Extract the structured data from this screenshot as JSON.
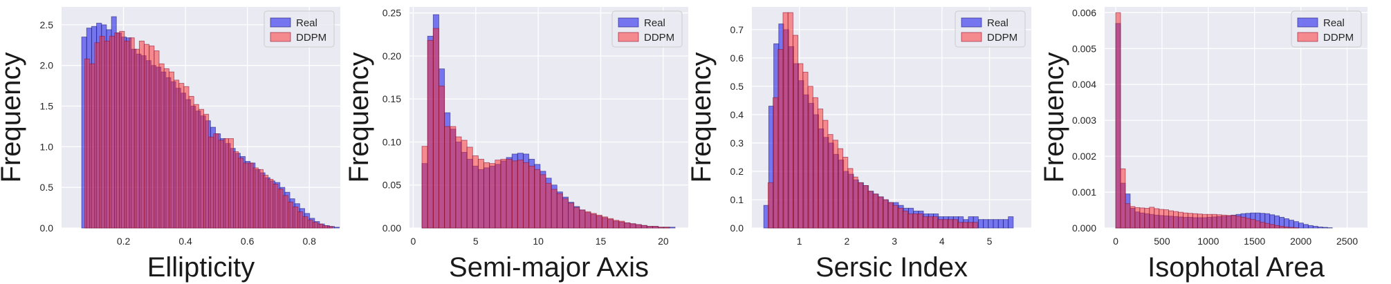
{
  "legend_labels": [
    "Real",
    "DDPM"
  ],
  "series_colors": {
    "Real": "#0000ee",
    "DDPM": "#ff2a2a",
    "Real_edge": "#1c1c6e",
    "DDPM_edge": "#8a1030"
  },
  "chart_data": [
    {
      "type": "bar",
      "title": "",
      "xlabel": "Ellipticity",
      "ylabel": "Frequency",
      "legend": "top-right",
      "grid": true,
      "xlim": [
        0.0,
        0.9
      ],
      "ylim": [
        0.0,
        2.72
      ],
      "xticks": [
        0.2,
        0.4,
        0.6,
        0.8
      ],
      "xtick_labels": [
        "0.2",
        "0.4",
        "0.6",
        "0.8"
      ],
      "yticks": [
        0.0,
        0.5,
        1.0,
        1.5,
        2.0,
        2.5
      ],
      "ytick_labels": [
        "0.0",
        "0.5",
        "1.0",
        "1.5",
        "2.0",
        "2.5"
      ],
      "series": [
        {
          "name": "Real",
          "bin_start": 0.065,
          "bin_width": 0.016,
          "values": [
            2.35,
            2.46,
            2.48,
            2.52,
            2.5,
            2.44,
            2.6,
            2.4,
            2.35,
            2.34,
            2.2,
            2.14,
            2.12,
            2.06,
            2.0,
            1.98,
            1.92,
            1.85,
            1.8,
            1.72,
            1.66,
            1.58,
            1.5,
            1.44,
            1.38,
            1.32,
            1.24,
            1.16,
            1.1,
            1.04,
            0.98,
            0.92,
            0.88,
            0.82,
            0.8,
            0.72,
            0.68,
            0.62,
            0.58,
            0.56,
            0.5,
            0.44,
            0.36,
            0.3,
            0.24,
            0.18,
            0.12,
            0.08,
            0.05,
            0.03,
            0.02,
            0.01
          ]
        },
        {
          "name": "DDPM",
          "bin_start": 0.075,
          "bin_width": 0.016,
          "values": [
            2.08,
            2.02,
            2.28,
            2.36,
            2.3,
            2.36,
            2.4,
            2.42,
            2.3,
            2.34,
            2.2,
            2.3,
            2.26,
            2.24,
            2.18,
            2.02,
            1.96,
            1.92,
            1.82,
            1.78,
            1.74,
            1.62,
            1.52,
            1.46,
            1.4,
            1.12,
            1.16,
            1.08,
            1.1,
            1.1,
            0.94,
            0.86,
            0.8,
            0.8,
            0.74,
            0.72,
            0.65,
            0.6,
            0.54,
            0.48,
            0.4,
            0.32,
            0.26,
            0.2,
            0.14,
            0.1,
            0.07,
            0.05,
            0.03,
            0.02
          ]
        }
      ]
    },
    {
      "type": "bar",
      "title": "",
      "xlabel": "Semi-major Axis",
      "ylabel": "Frequency",
      "legend": "top-right",
      "grid": true,
      "xlim": [
        -0.3,
        22.0
      ],
      "ylim": [
        0.0,
        0.257
      ],
      "xticks": [
        0,
        5,
        10,
        15,
        20
      ],
      "xtick_labels": [
        "0",
        "5",
        "10",
        "15",
        "20"
      ],
      "yticks": [
        0.0,
        0.05,
        0.1,
        0.15,
        0.2,
        0.25
      ],
      "ytick_labels": [
        "0.00",
        "0.05",
        "0.10",
        "0.15",
        "0.20",
        "0.25"
      ],
      "series": [
        {
          "name": "Real",
          "bin_start": 0.7,
          "bin_width": 0.45,
          "values": [
            0.075,
            0.223,
            0.248,
            0.185,
            0.134,
            0.115,
            0.1,
            0.088,
            0.08,
            0.072,
            0.068,
            0.07,
            0.072,
            0.074,
            0.078,
            0.082,
            0.086,
            0.087,
            0.086,
            0.08,
            0.074,
            0.066,
            0.058,
            0.05,
            0.042,
            0.036,
            0.03,
            0.025,
            0.021,
            0.018,
            0.016,
            0.014,
            0.012,
            0.01,
            0.008,
            0.007,
            0.006,
            0.005,
            0.004,
            0.003,
            0.002,
            0.002,
            0.001,
            0.001,
            0.001
          ]
        },
        {
          "name": "DDPM",
          "bin_start": 0.7,
          "bin_width": 0.45,
          "values": [
            0.095,
            0.218,
            0.232,
            0.165,
            0.118,
            0.118,
            0.106,
            0.102,
            0.094,
            0.084,
            0.08,
            0.076,
            0.075,
            0.079,
            0.08,
            0.08,
            0.078,
            0.079,
            0.076,
            0.072,
            0.068,
            0.062,
            0.052,
            0.045,
            0.04,
            0.034,
            0.029,
            0.024,
            0.021,
            0.019,
            0.017,
            0.015,
            0.013,
            0.011,
            0.009,
            0.008,
            0.006,
            0.005,
            0.004,
            0.003,
            0.002,
            0.002,
            0.001,
            0.001
          ]
        }
      ]
    },
    {
      "type": "bar",
      "title": "",
      "xlabel": "Sersic Index",
      "ylabel": "Frequency",
      "legend": "top-right",
      "grid": true,
      "xlim": [
        0.0,
        5.88
      ],
      "ylim": [
        0.0,
        0.78
      ],
      "xticks": [
        1,
        2,
        3,
        4,
        5
      ],
      "xtick_labels": [
        "1",
        "2",
        "3",
        "4",
        "5"
      ],
      "yticks": [
        0.0,
        0.1,
        0.2,
        0.3,
        0.4,
        0.5,
        0.6,
        0.7
      ],
      "ytick_labels": [
        "0.0",
        "0.1",
        "0.2",
        "0.3",
        "0.4",
        "0.5",
        "0.6",
        "0.7"
      ],
      "series": [
        {
          "name": "Real",
          "bin_start": 0.25,
          "bin_width": 0.105,
          "values": [
            0.08,
            0.43,
            0.65,
            0.72,
            0.7,
            0.64,
            0.58,
            0.52,
            0.47,
            0.44,
            0.4,
            0.35,
            0.32,
            0.3,
            0.26,
            0.24,
            0.2,
            0.19,
            0.17,
            0.16,
            0.15,
            0.13,
            0.12,
            0.11,
            0.1,
            0.09,
            0.09,
            0.08,
            0.07,
            0.07,
            0.06,
            0.06,
            0.05,
            0.05,
            0.05,
            0.04,
            0.04,
            0.04,
            0.04,
            0.04,
            0.03,
            0.04,
            0.04,
            0.03,
            0.03,
            0.03,
            0.03,
            0.03,
            0.03,
            0.04
          ]
        },
        {
          "name": "DDPM",
          "bin_start": 0.34,
          "bin_width": 0.105,
          "values": [
            0.16,
            0.46,
            0.63,
            0.76,
            0.76,
            0.68,
            0.58,
            0.55,
            0.5,
            0.46,
            0.42,
            0.38,
            0.33,
            0.31,
            0.28,
            0.25,
            0.21,
            0.18,
            0.16,
            0.15,
            0.13,
            0.12,
            0.11,
            0.1,
            0.09,
            0.08,
            0.07,
            0.06,
            0.05,
            0.05,
            0.05,
            0.04,
            0.04,
            0.04,
            0.03,
            0.03,
            0.03,
            0.03,
            0.02,
            0.02,
            0.02,
            0.02
          ]
        }
      ]
    },
    {
      "type": "bar",
      "title": "",
      "xlabel": "Isophotal Area",
      "ylabel": "Frequency",
      "legend": "top-right",
      "grid": true,
      "xlim": [
        -120,
        2720
      ],
      "ylim": [
        0.0,
        0.00616
      ],
      "xticks": [
        0,
        500,
        1000,
        1500,
        2000,
        2500
      ],
      "xtick_labels": [
        "0",
        "500",
        "1000",
        "1500",
        "2000",
        "2500"
      ],
      "yticks": [
        0.0,
        0.001,
        0.002,
        0.003,
        0.004,
        0.005,
        0.006
      ],
      "ytick_labels": [
        "0.000",
        "0.001",
        "0.002",
        "0.003",
        "0.004",
        "0.005",
        "0.006"
      ],
      "series": [
        {
          "name": "Real",
          "bin_start": 0,
          "bin_width": 52,
          "values": [
            0.0057,
            0.00125,
            0.00095,
            0.00055,
            0.00045,
            0.00042,
            0.0004,
            0.00038,
            0.00036,
            0.00035,
            0.00034,
            0.00033,
            0.00032,
            0.00031,
            0.0003,
            0.0003,
            0.00029,
            0.00029,
            0.00029,
            0.0003,
            0.00031,
            0.00032,
            0.00033,
            0.00034,
            0.00036,
            0.00038,
            0.0004,
            0.00041,
            0.00042,
            0.00042,
            0.00041,
            0.0004,
            0.00037,
            0.00034,
            0.0003,
            0.00026,
            0.00022,
            0.00018,
            0.00014,
            0.0001,
            7e-05,
            5e-05,
            3e-05,
            2e-05,
            1e-05
          ]
        },
        {
          "name": "DDPM",
          "bin_start": 0,
          "bin_width": 52,
          "values": [
            0.006,
            0.00165,
            0.00068,
            0.0006,
            0.00057,
            0.00056,
            0.00055,
            0.00058,
            0.00054,
            0.00052,
            0.00051,
            0.00048,
            0.00046,
            0.00044,
            0.00042,
            0.00041,
            0.0004,
            0.00039,
            0.00038,
            0.00038,
            0.00038,
            0.00037,
            0.00036,
            0.00035,
            0.00035,
            0.00033,
            0.0003,
            0.00027,
            0.00024,
            0.0002,
            0.00016,
            0.00013,
            0.0001,
            7e-05,
            5e-05,
            3e-05,
            2e-05,
            1e-05
          ]
        }
      ]
    }
  ]
}
